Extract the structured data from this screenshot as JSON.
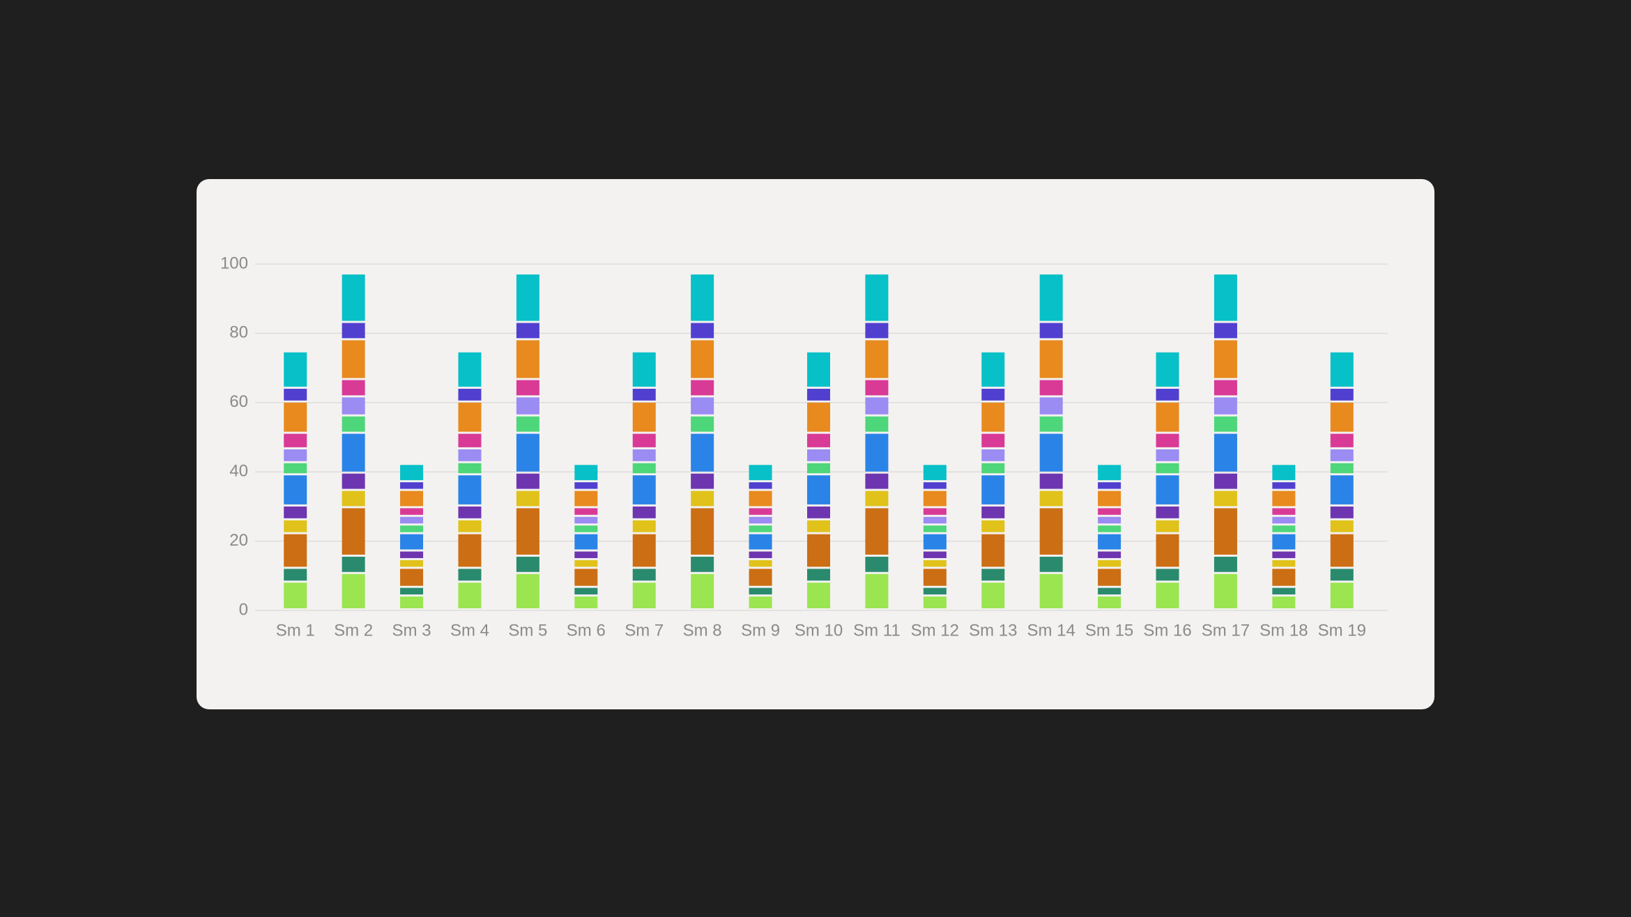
{
  "chart_data": {
    "type": "stacked_bar",
    "categories": [
      "Sm 1",
      "Sm 2",
      "Sm 3",
      "Sm 4",
      "Sm 5",
      "Sm 6",
      "Sm 7",
      "Sm 8",
      "Sm 9",
      "Sm 10",
      "Sm 11",
      "Sm 12",
      "Sm 13",
      "Sm 14",
      "Sm 15",
      "Sm 16",
      "Sm 17",
      "Sm 18",
      "Sm 19"
    ],
    "series": [
      {
        "color": "#9be551",
        "values": [
          8,
          10.5,
          4,
          8,
          10.5,
          4,
          8,
          10.5,
          4,
          8,
          10.5,
          4,
          8,
          10.5,
          4,
          8,
          10.5,
          4,
          8
        ]
      },
      {
        "color": "#2a8a6e",
        "values": [
          4,
          5,
          2.5,
          4,
          5,
          2.5,
          4,
          5,
          2.5,
          4,
          5,
          2.5,
          4,
          5,
          2.5,
          4,
          5,
          2.5,
          4
        ]
      },
      {
        "color": "#cc6e14",
        "values": [
          10,
          14,
          5.5,
          10,
          14,
          5.5,
          10,
          14,
          5.5,
          10,
          14,
          5.5,
          10,
          14,
          5.5,
          10,
          14,
          5.5,
          10
        ]
      },
      {
        "color": "#e0c21a",
        "values": [
          4,
          5,
          2.5,
          4,
          5,
          2.5,
          4,
          5,
          2.5,
          4,
          5,
          2.5,
          4,
          5,
          2.5,
          4,
          5,
          2.5,
          4
        ]
      },
      {
        "color": "#6e35b0",
        "values": [
          4,
          5,
          2.5,
          4,
          5,
          2.5,
          4,
          5,
          2.5,
          4,
          5,
          2.5,
          4,
          5,
          2.5,
          4,
          5,
          2.5,
          4
        ]
      },
      {
        "color": "#2a84e8",
        "values": [
          9,
          11.5,
          5,
          9,
          11.5,
          5,
          9,
          11.5,
          5,
          9,
          11.5,
          5,
          9,
          11.5,
          5,
          9,
          11.5,
          5,
          9
        ]
      },
      {
        "color": "#4ed67a",
        "values": [
          3.5,
          5,
          2.5,
          3.5,
          5,
          2.5,
          3.5,
          5,
          2.5,
          3.5,
          5,
          2.5,
          3.5,
          5,
          2.5,
          3.5,
          5,
          2.5,
          3.5
        ]
      },
      {
        "color": "#9a8cf2",
        "values": [
          4,
          5.5,
          2.5,
          4,
          5.5,
          2.5,
          4,
          5.5,
          2.5,
          4,
          5.5,
          2.5,
          4,
          5.5,
          2.5,
          4,
          5.5,
          2.5,
          4
        ]
      },
      {
        "color": "#d93a96",
        "values": [
          4.5,
          5,
          2.5,
          4.5,
          5,
          2.5,
          4.5,
          5,
          2.5,
          4.5,
          5,
          2.5,
          4.5,
          5,
          2.5,
          4.5,
          5,
          2.5,
          4.5
        ]
      },
      {
        "color": "#e88a1e",
        "values": [
          9,
          11.5,
          5,
          9,
          11.5,
          5,
          9,
          11.5,
          5,
          9,
          11.5,
          5,
          9,
          11.5,
          5,
          9,
          11.5,
          5,
          9
        ]
      },
      {
        "color": "#5140d0",
        "values": [
          4,
          5,
          2.5,
          4,
          5,
          2.5,
          4,
          5,
          2.5,
          4,
          5,
          2.5,
          4,
          5,
          2.5,
          4,
          5,
          2.5,
          4
        ]
      },
      {
        "color": "#08c0c8",
        "values": [
          10.5,
          14,
          5,
          10.5,
          14,
          5,
          10.5,
          14,
          5,
          10.5,
          14,
          5,
          10.5,
          14,
          5,
          10.5,
          14,
          5,
          10.5
        ]
      }
    ],
    "ylim": [
      0,
      100
    ],
    "yticks": [
      0,
      20,
      40,
      60,
      80,
      100
    ],
    "grid": true
  }
}
